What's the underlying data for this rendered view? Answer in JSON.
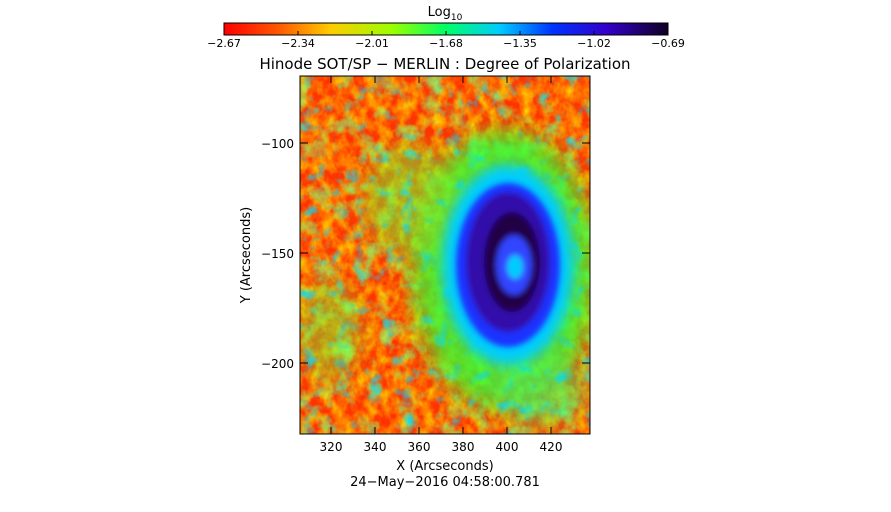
{
  "colorbar": {
    "label": "Log",
    "label_subscript": "10",
    "tick_labels": [
      "−2.67",
      "−2.34",
      "−2.01",
      "−1.68",
      "−1.35",
      "−1.02",
      "−0.69"
    ],
    "range": [
      -2.67,
      -0.69
    ],
    "colormap": "rainbow (red = low → violet/black = high)"
  },
  "figure": {
    "title": "Hinode SOT/SP − MERLIN : Degree of Polarization",
    "xlabel": "X (Arcseconds)",
    "ylabel": "Y (Arcseconds)",
    "timestamp": "24−May−2016 04:58:00.781",
    "x_tick_labels": [
      "320",
      "340",
      "360",
      "380",
      "400",
      "420"
    ],
    "y_tick_labels": [
      "−100",
      "−150",
      "−200"
    ]
  },
  "image_content": {
    "description_colors": {
      "background_low": "#ff3300",
      "mid_green": "#33ff33",
      "cyan": "#00ccff",
      "blue": "#1a33ff",
      "violet": "#3311aa",
      "dark_core": "#220044"
    }
  }
}
